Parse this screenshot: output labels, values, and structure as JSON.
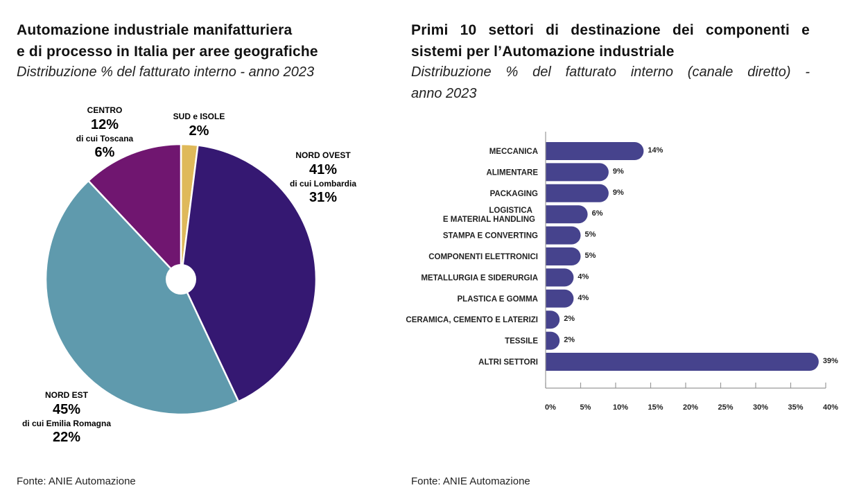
{
  "left": {
    "title_line1": "Automazione industriale manifatturiera",
    "title_line2": "e di processo in Italia per aree geografiche",
    "subtitle": "Distribuzione % del fatturato interno - anno 2023",
    "source": "Fonte: ANIE Automazione"
  },
  "right": {
    "title_line1": "Primi 10 settori di destinazione dei componenti e",
    "title_line2": "sistemi per l’Automazione industriale",
    "subtitle_line1": "Distribuzione % del fatturato interno (canale diretto) -",
    "subtitle_line2": "anno 2023",
    "source": "Fonte: ANIE Automazione"
  },
  "chart_data": [
    {
      "type": "pie",
      "title": "Automazione industriale manifatturiera e di processo in Italia per aree geografiche",
      "slices": [
        {
          "name": "SUD e ISOLE",
          "value": 2,
          "value_label": "2%",
          "color": "#dfb95a"
        },
        {
          "name": "NORD OVEST",
          "value": 41,
          "value_label": "41%",
          "sub_label": "di cui Lombardia",
          "sub_value_label": "31%",
          "color": "#351872"
        },
        {
          "name": "NORD EST",
          "value": 45,
          "value_label": "45%",
          "sub_label": "di cui Emilia Romagna",
          "sub_value_label": "22%",
          "color": "#5f9aad"
        },
        {
          "name": "CENTRO",
          "value": 12,
          "value_label": "12%",
          "sub_label": "di cui Toscana",
          "sub_value_label": "6%",
          "color": "#701670"
        }
      ]
    },
    {
      "type": "bar",
      "orientation": "horizontal",
      "title": "Primi 10 settori di destinazione dei componenti e sistemi per l’Automazione industriale",
      "categories": [
        "MECCANICA",
        "ALIMENTARE",
        "PACKAGING",
        "LOGISTICA\nE MATERIAL HANDLING",
        "STAMPA E CONVERTING",
        "COMPONENTI ELETTRONICI",
        "METALLURGIA E SIDERURGIA",
        "PLASTICA E GOMMA",
        "CERAMICA, CEMENTO E LATERIZI",
        "TESSILE",
        "ALTRI SETTORI"
      ],
      "values": [
        14,
        9,
        9,
        6,
        5,
        5,
        4,
        4,
        2,
        2,
        39
      ],
      "value_labels": [
        "14%",
        "9%",
        "9%",
        "6%",
        "5%",
        "5%",
        "4%",
        "4%",
        "2%",
        "2%",
        "39%"
      ],
      "xlim": [
        0,
        40
      ],
      "xticks": [
        0,
        5,
        10,
        15,
        20,
        25,
        30,
        35,
        40
      ],
      "xtick_labels": [
        "0%",
        "5%",
        "10%",
        "15%",
        "20%",
        "25%",
        "30%",
        "35%",
        "40%"
      ],
      "bar_color": "#46438d",
      "grid": false
    }
  ]
}
